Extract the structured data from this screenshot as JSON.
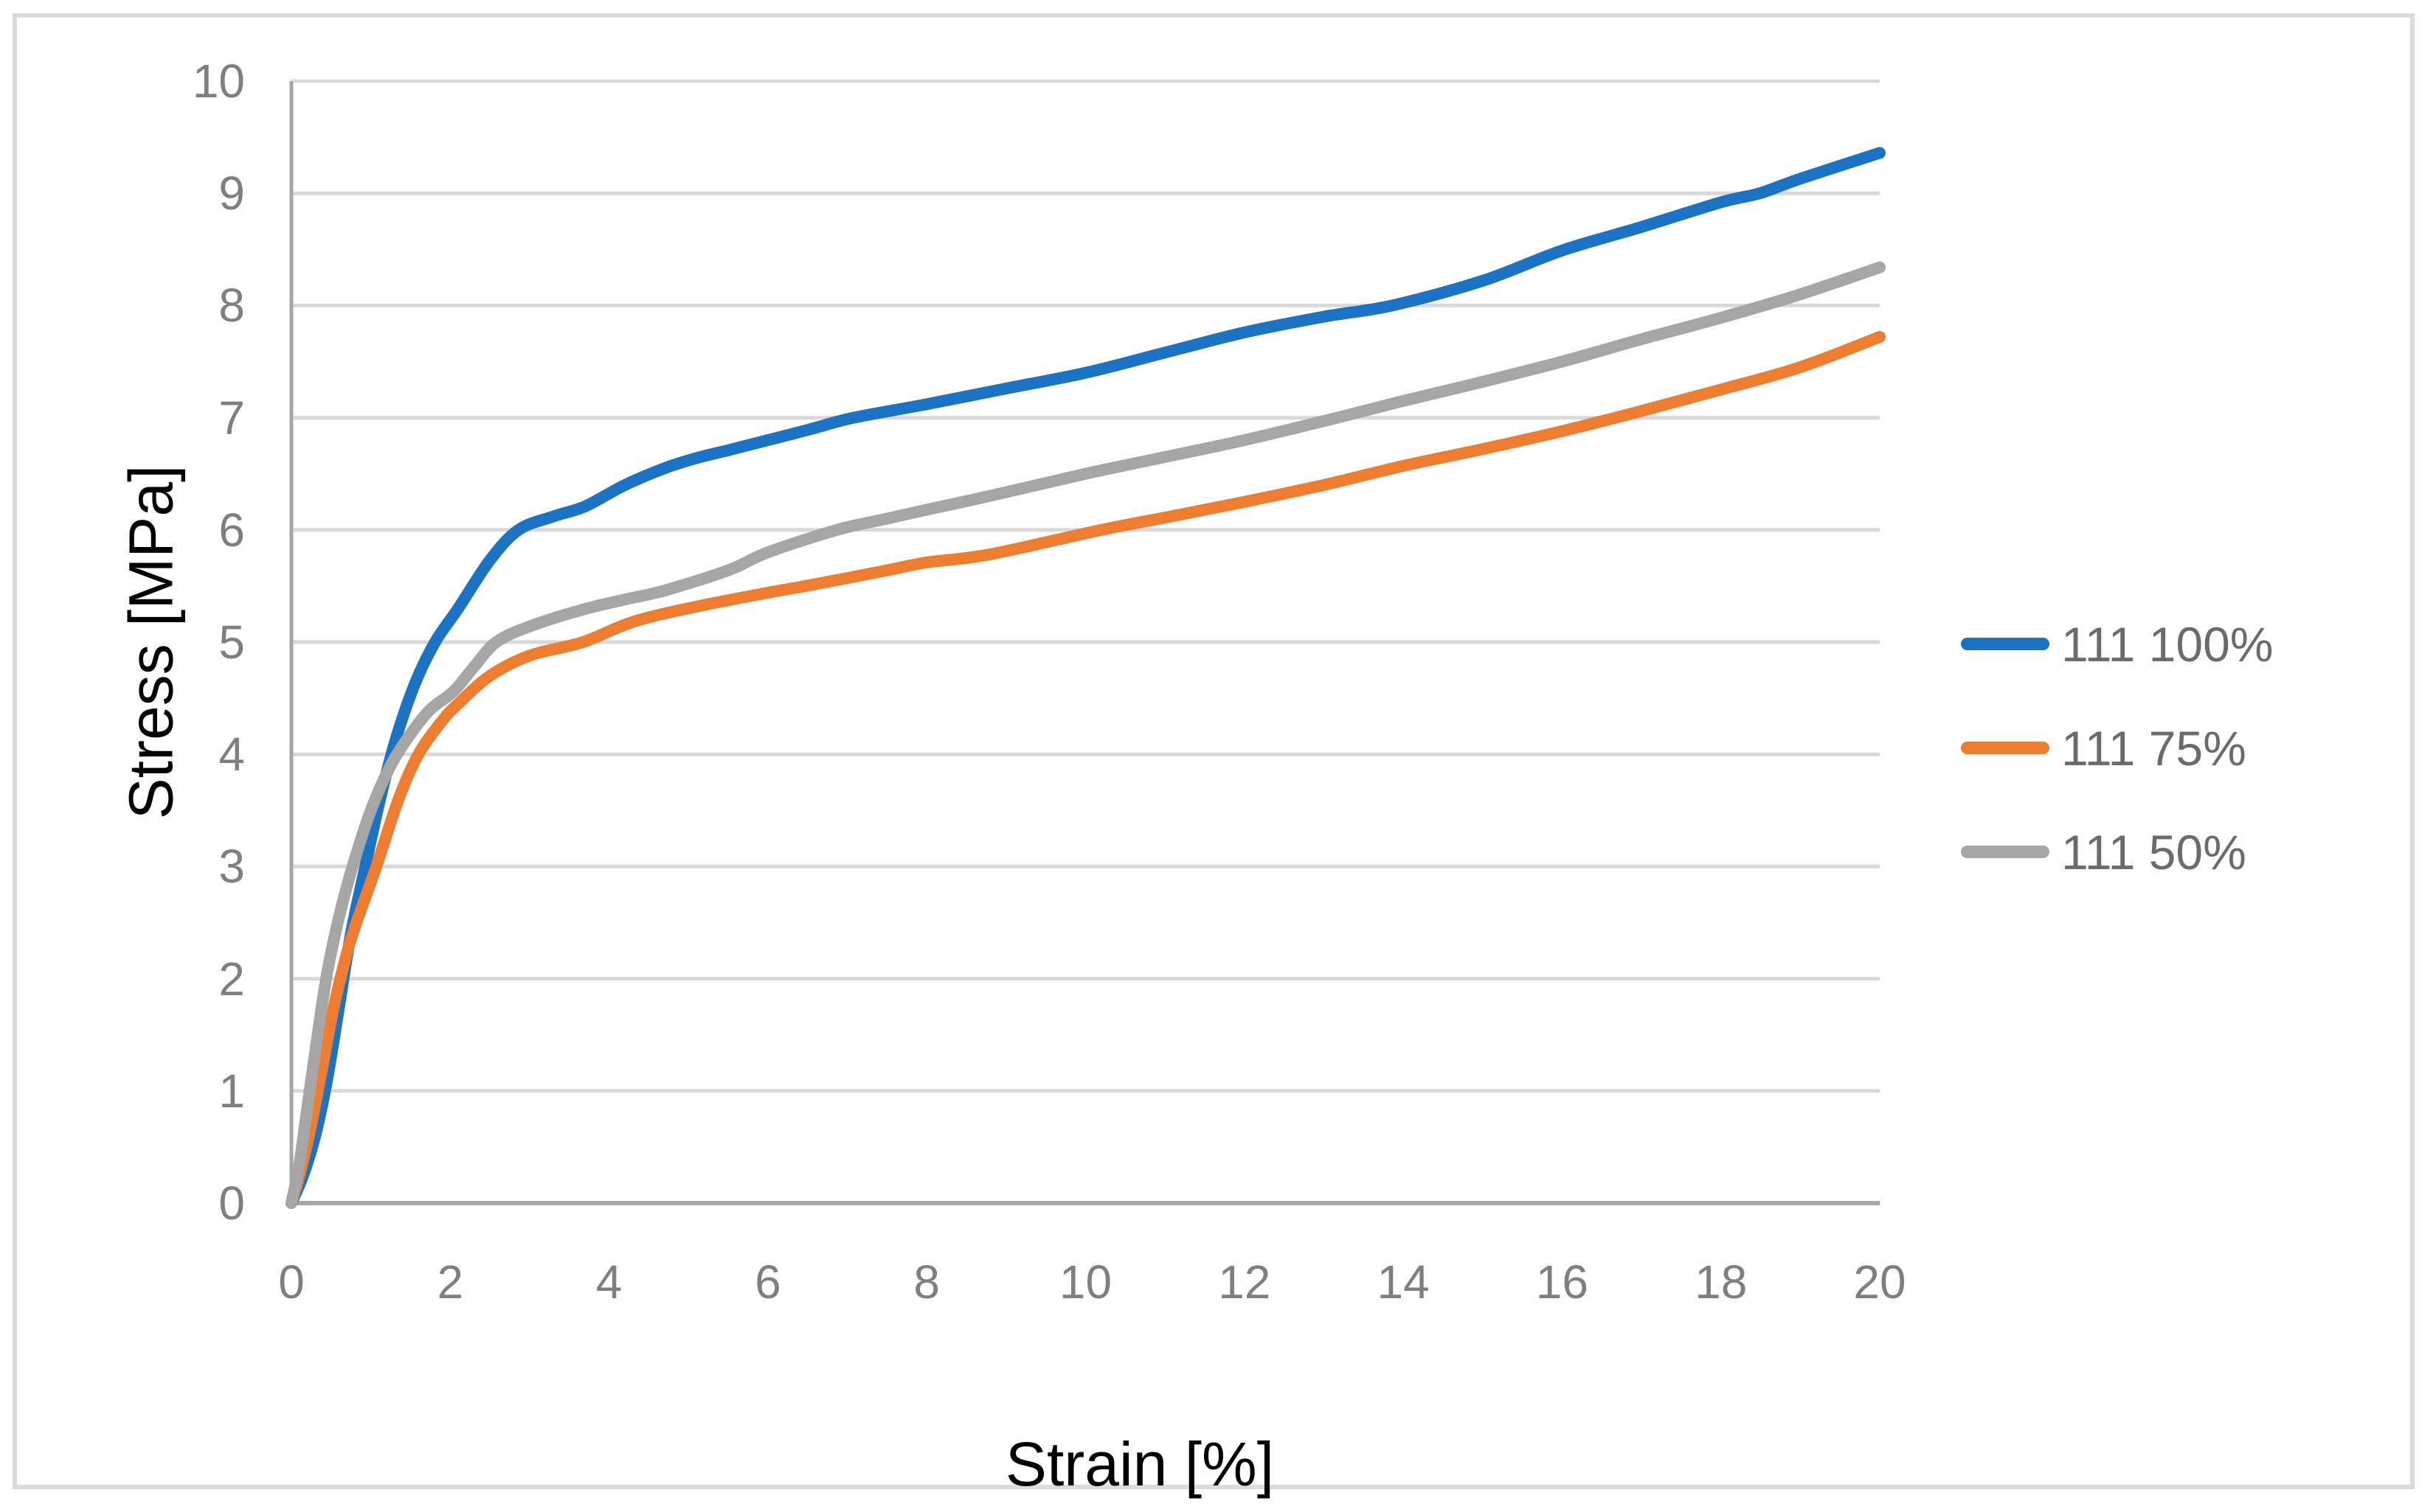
{
  "figure": {
    "background": "#FFFFFF",
    "frame_border_color": "#DBDBDB"
  },
  "styles": {
    "gridline_color": "#D9D9D9",
    "axis_line_color": "#A6A6A6",
    "tick_label_color": "#7F7F7F",
    "axis_title_color": "#000000",
    "legend_text_color": "#6B6B6B",
    "curve_stroke_width": 16
  },
  "chart_data": {
    "type": "line",
    "title": "",
    "xlabel": "Strain [%]",
    "ylabel": "Stress [MPa]",
    "xlim": [
      0,
      20
    ],
    "ylim": [
      0,
      10
    ],
    "x_ticks": [
      0,
      2,
      4,
      6,
      8,
      10,
      12,
      14,
      16,
      18,
      20
    ],
    "y_ticks": [
      0,
      1,
      2,
      3,
      4,
      5,
      6,
      7,
      8,
      9,
      10
    ],
    "grid": "horizontal-only",
    "legend_position": "right",
    "series": [
      {
        "name": "111 100%",
        "color": "#1C72C3",
        "points": [
          [
            0,
            0
          ],
          [
            0.15,
            0.25
          ],
          [
            0.3,
            0.6
          ],
          [
            0.45,
            1.1
          ],
          [
            0.6,
            1.75
          ],
          [
            0.75,
            2.4
          ],
          [
            0.93,
            3.0
          ],
          [
            1.1,
            3.55
          ],
          [
            1.3,
            4.1
          ],
          [
            1.55,
            4.62
          ],
          [
            1.81,
            5.0
          ],
          [
            2.1,
            5.3
          ],
          [
            2.5,
            5.73
          ],
          [
            2.86,
            6.0
          ],
          [
            3.3,
            6.12
          ],
          [
            3.7,
            6.21
          ],
          [
            4.2,
            6.4
          ],
          [
            4.7,
            6.55
          ],
          [
            5.1,
            6.64
          ],
          [
            5.5,
            6.71
          ],
          [
            6.0,
            6.8
          ],
          [
            6.55,
            6.9
          ],
          [
            7.08,
            7.0
          ],
          [
            8.0,
            7.12
          ],
          [
            9.0,
            7.26
          ],
          [
            10.0,
            7.4
          ],
          [
            11.0,
            7.58
          ],
          [
            12.0,
            7.76
          ],
          [
            13.0,
            7.9
          ],
          [
            13.86,
            8.0
          ],
          [
            15.0,
            8.22
          ],
          [
            16.0,
            8.49
          ],
          [
            17.0,
            8.7
          ],
          [
            18.0,
            8.92
          ],
          [
            18.49,
            9.0
          ],
          [
            19.0,
            9.13
          ],
          [
            20.0,
            9.36
          ]
        ]
      },
      {
        "name": "111 75%",
        "color": "#ED7D31",
        "points": [
          [
            0,
            0
          ],
          [
            0.12,
            0.3
          ],
          [
            0.25,
            0.7
          ],
          [
            0.4,
            1.25
          ],
          [
            0.55,
            1.8
          ],
          [
            0.75,
            2.35
          ],
          [
            1.07,
            3.0
          ],
          [
            1.35,
            3.6
          ],
          [
            1.6,
            4.0
          ],
          [
            1.9,
            4.3
          ],
          [
            2.1,
            4.45
          ],
          [
            2.5,
            4.7
          ],
          [
            3.0,
            4.88
          ],
          [
            3.67,
            5.0
          ],
          [
            4.3,
            5.18
          ],
          [
            5.06,
            5.31
          ],
          [
            6.0,
            5.44
          ],
          [
            6.55,
            5.51
          ],
          [
            7.5,
            5.64
          ],
          [
            8.0,
            5.71
          ],
          [
            8.78,
            5.78
          ],
          [
            10.2,
            6.0
          ],
          [
            11.0,
            6.11
          ],
          [
            12.0,
            6.25
          ],
          [
            13.0,
            6.4
          ],
          [
            14.0,
            6.57
          ],
          [
            15.0,
            6.72
          ],
          [
            16.0,
            6.88
          ],
          [
            17.0,
            7.06
          ],
          [
            18.0,
            7.25
          ],
          [
            19.0,
            7.45
          ],
          [
            20.0,
            7.72
          ]
        ]
      },
      {
        "name": "111 50%",
        "color": "#A6A6A6",
        "points": [
          [
            0,
            0
          ],
          [
            0.1,
            0.35
          ],
          [
            0.2,
            0.85
          ],
          [
            0.33,
            1.5
          ],
          [
            0.45,
            2.05
          ],
          [
            0.6,
            2.55
          ],
          [
            0.77,
            3.0
          ],
          [
            1.0,
            3.5
          ],
          [
            1.25,
            3.9
          ],
          [
            1.5,
            4.18
          ],
          [
            1.75,
            4.4
          ],
          [
            2.04,
            4.56
          ],
          [
            2.3,
            4.78
          ],
          [
            2.58,
            5.0
          ],
          [
            3.0,
            5.14
          ],
          [
            3.67,
            5.29
          ],
          [
            4.2,
            5.38
          ],
          [
            4.7,
            5.46
          ],
          [
            5.5,
            5.64
          ],
          [
            6.0,
            5.8
          ],
          [
            6.87,
            6.0
          ],
          [
            7.5,
            6.1
          ],
          [
            8.0,
            6.18
          ],
          [
            8.78,
            6.3
          ],
          [
            10.0,
            6.5
          ],
          [
            11.0,
            6.65
          ],
          [
            12.0,
            6.8
          ],
          [
            13.17,
            7.0
          ],
          [
            14.0,
            7.15
          ],
          [
            15.0,
            7.32
          ],
          [
            16.0,
            7.5
          ],
          [
            17.0,
            7.7
          ],
          [
            18.0,
            7.89
          ],
          [
            19.0,
            8.1
          ],
          [
            20.0,
            8.34
          ]
        ]
      }
    ]
  }
}
